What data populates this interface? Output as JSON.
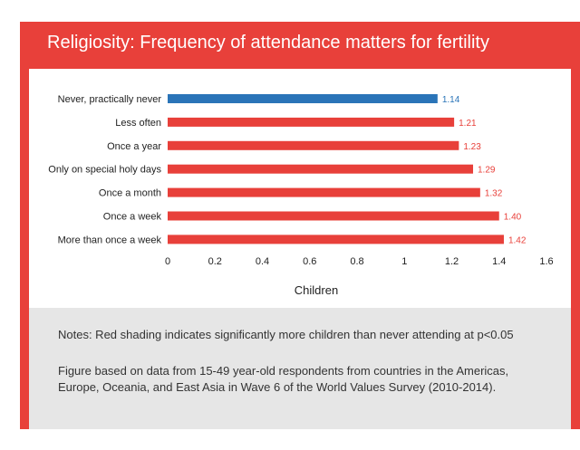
{
  "title": "Religiosity: Frequency of attendance matters for fertility",
  "colors": {
    "header": "#e8403a",
    "highlight": "#2a74b8",
    "bar": "#e8403a",
    "notes_bg": "#e6e6e6"
  },
  "notes": {
    "line1": "Notes: Red shading indicates significantly more children than never attending at p<0.05",
    "line2a": "Figure based on data from 15-49 year-old respondents from countries in the Americas,",
    "line2b": "Europe, Oceania, and East Asia in Wave 6 of the World Values Survey (2010-2014)."
  },
  "chart_data": {
    "type": "bar",
    "orientation": "horizontal",
    "categories": [
      "Never, practically never",
      "Less often",
      "Once a year",
      "Only on special holy days",
      "Once a month",
      "Once a week",
      "More than once a week"
    ],
    "values": [
      1.14,
      1.21,
      1.23,
      1.29,
      1.32,
      1.4,
      1.42
    ],
    "value_labels": [
      "1.14",
      "1.21",
      "1.23",
      "1.29",
      "1.32",
      "1.40",
      "1.42"
    ],
    "bar_colors": [
      "#2a74b8",
      "#e8403a",
      "#e8403a",
      "#e8403a",
      "#e8403a",
      "#e8403a",
      "#e8403a"
    ],
    "xlabel": "Children",
    "xlim": [
      0,
      1.6
    ],
    "xticks": [
      0,
      0.2,
      0.4,
      0.6,
      0.8,
      1,
      1.2,
      1.4,
      1.6
    ],
    "xtick_labels": [
      "0",
      "0.2",
      "0.4",
      "0.6",
      "0.8",
      "1",
      "1.2",
      "1.4",
      "1.6"
    ],
    "grid": false
  }
}
